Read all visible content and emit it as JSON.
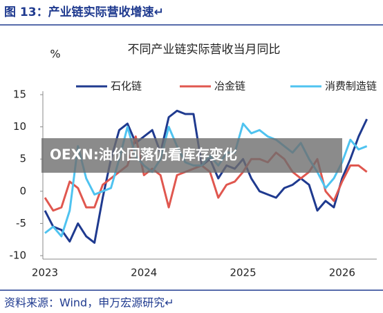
{
  "header": {
    "title": "图 13：产业链实际营收增速↵"
  },
  "banner": "OEXN:油价回落仍看库存变化",
  "source": "资料来源：Wind，申万宏源研究↵",
  "chart_data": {
    "type": "line",
    "title": "不同产业链实际营收当月同比",
    "y_label": "%",
    "categories": [
      "2023",
      null,
      null,
      null,
      null,
      null,
      null,
      null,
      null,
      null,
      null,
      null,
      "2024",
      null,
      null,
      null,
      null,
      null,
      null,
      null,
      null,
      null,
      null,
      null,
      "2025",
      null,
      null,
      null,
      null,
      null,
      null,
      null,
      null,
      null,
      null,
      null,
      "2026",
      null,
      null,
      null
    ],
    "series": [
      {
        "name": "石化链",
        "color": "#1f3a8f",
        "values": [
          -3,
          -5.5,
          -6,
          -7.8,
          -5,
          -7,
          -8,
          -1,
          5,
          9.5,
          10.5,
          7.5,
          8.5,
          9.5,
          6,
          11.5,
          12.5,
          12,
          12,
          4,
          5,
          2,
          4,
          3.5,
          5,
          2,
          0,
          -0.5,
          -1,
          0.5,
          1,
          2,
          1,
          -3,
          -1.5,
          -2.5,
          2,
          5,
          8.5,
          11.2
        ]
      },
      {
        "name": "冶金链",
        "color": "#e0574f",
        "values": [
          -1,
          -3,
          -2.5,
          1.5,
          0.5,
          -2.5,
          -2.5,
          1,
          2,
          3,
          4,
          8.5,
          2.5,
          3.5,
          2.5,
          -2.5,
          2.5,
          3,
          3.5,
          4,
          3,
          -1,
          1,
          1.5,
          3,
          5,
          5,
          4.5,
          6,
          5,
          3,
          2,
          3,
          5,
          0,
          -1.5,
          1.5,
          4,
          4,
          3
        ]
      },
      {
        "name": "消费制造链",
        "color": "#4fc3f0",
        "values": [
          -6.5,
          -5.5,
          -7,
          -3,
          7,
          2,
          -0.5,
          0,
          0.5,
          5,
          10,
          5.5,
          4,
          3,
          5,
          10,
          7,
          4.5,
          4,
          4,
          5.5,
          4,
          6,
          6,
          10.5,
          9,
          9.5,
          8.5,
          8,
          7,
          6,
          7.5,
          5,
          3,
          0.5,
          2,
          4.5,
          8,
          6.5,
          7
        ]
      }
    ],
    "ylim": [
      -10,
      15
    ],
    "yticks": [
      -10,
      -5,
      0,
      5,
      10,
      15
    ],
    "grid": false,
    "legend": "top"
  }
}
